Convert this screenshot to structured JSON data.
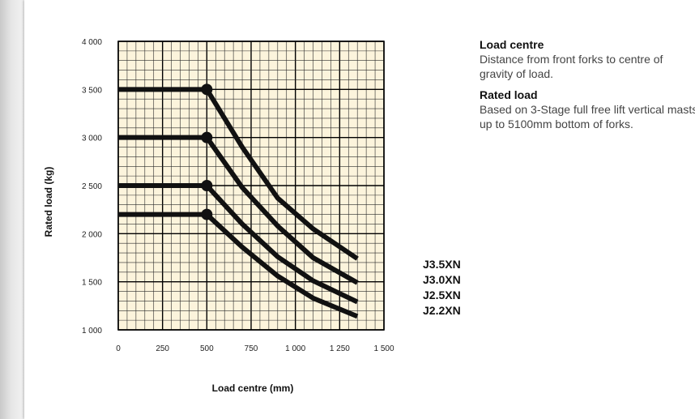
{
  "notes": {
    "load_centre_title": "Load centre",
    "load_centre_text": "Distance from front forks to centre of gravity of load.",
    "rated_load_title": "Rated load",
    "rated_load_text": "Based on 3-Stage full free lift vertical masts up to 5100mm bottom of forks."
  },
  "colors": {
    "plot_background": "#fcf4dc",
    "grid_minor": "#2a2a2a",
    "grid_major": "#000000",
    "curve": "#111111"
  },
  "chart_data": {
    "type": "line",
    "title": "",
    "xlabel": "Load centre (mm)",
    "ylabel": "Rated load (kg)",
    "xlim": [
      0,
      1500
    ],
    "ylim": [
      1000,
      4000
    ],
    "xticks": [
      0,
      250,
      500,
      750,
      1000,
      1250,
      1500
    ],
    "xtick_labels": [
      "0",
      "250",
      "500",
      "750",
      "1 000",
      "1 250",
      "1 500"
    ],
    "yticks": [
      1000,
      1500,
      2000,
      2500,
      3000,
      3500,
      4000
    ],
    "ytick_labels": [
      "1 000",
      "1 500",
      "2 000",
      "2 500",
      "3 000",
      "3 500",
      "4 000"
    ],
    "grid": true,
    "series": [
      {
        "name": "J3.5XN",
        "x": [
          0,
          500,
          700,
          900,
          1100,
          1350
        ],
        "y": [
          3500,
          3500,
          2900,
          2370,
          2050,
          1740
        ]
      },
      {
        "name": "J3.0XN",
        "x": [
          0,
          500,
          700,
          900,
          1100,
          1350
        ],
        "y": [
          3000,
          3000,
          2480,
          2080,
          1750,
          1490
        ]
      },
      {
        "name": "J2.5XN",
        "x": [
          0,
          500,
          700,
          900,
          1100,
          1350
        ],
        "y": [
          2500,
          2500,
          2100,
          1760,
          1510,
          1290
        ]
      },
      {
        "name": "J2.2XN",
        "x": [
          0,
          500,
          700,
          900,
          1100,
          1350
        ],
        "y": [
          2200,
          2200,
          1860,
          1560,
          1330,
          1140
        ]
      }
    ],
    "markers": [
      {
        "x": 500,
        "y": 3500
      },
      {
        "x": 500,
        "y": 3000
      },
      {
        "x": 500,
        "y": 2500
      },
      {
        "x": 500,
        "y": 2200
      }
    ],
    "legend_placement": "right"
  }
}
